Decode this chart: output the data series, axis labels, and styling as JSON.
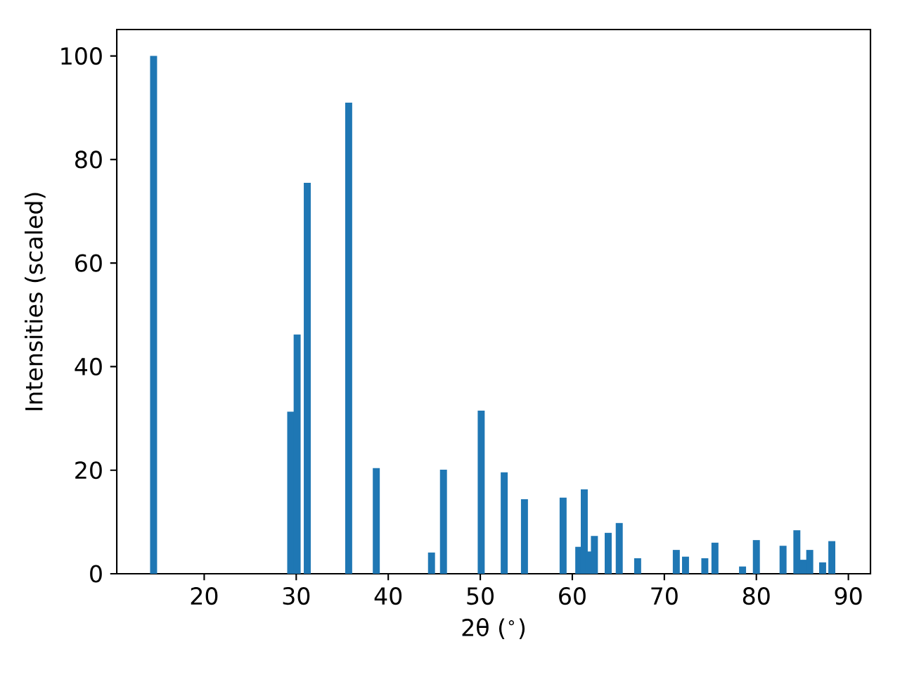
{
  "chart_data": {
    "type": "bar",
    "xlabel": "2θ ($^{∘}$)",
    "ylabel": "Intensities (scaled)",
    "x": [
      14.5,
      29.4,
      30.1,
      31.2,
      35.7,
      38.7,
      44.7,
      46.0,
      50.1,
      52.6,
      54.8,
      59.0,
      60.7,
      61.3,
      61.8,
      62.4,
      63.9,
      65.1,
      67.1,
      71.3,
      72.3,
      74.4,
      75.5,
      78.5,
      80.0,
      82.9,
      84.4,
      85.1,
      85.8,
      87.2,
      88.2
    ],
    "values": [
      100,
      31.3,
      46.2,
      75.5,
      91,
      20.4,
      4.1,
      20.1,
      31.5,
      19.6,
      14.4,
      14.7,
      5.2,
      16.3,
      4.3,
      7.3,
      7.9,
      9.8,
      3.0,
      4.6,
      3.3,
      3.0,
      6.0,
      1.4,
      6.5,
      5.4,
      8.4,
      2.7,
      4.6,
      2.2,
      6.3
    ],
    "color": "#1f77b4",
    "xlim": [
      10.5,
      92.4
    ],
    "ylim": [
      0,
      105.1
    ],
    "xticks": [
      20,
      30,
      40,
      50,
      60,
      70,
      80,
      90
    ],
    "yticks": [
      0,
      20,
      40,
      60,
      80,
      100
    ],
    "grid": false
  }
}
